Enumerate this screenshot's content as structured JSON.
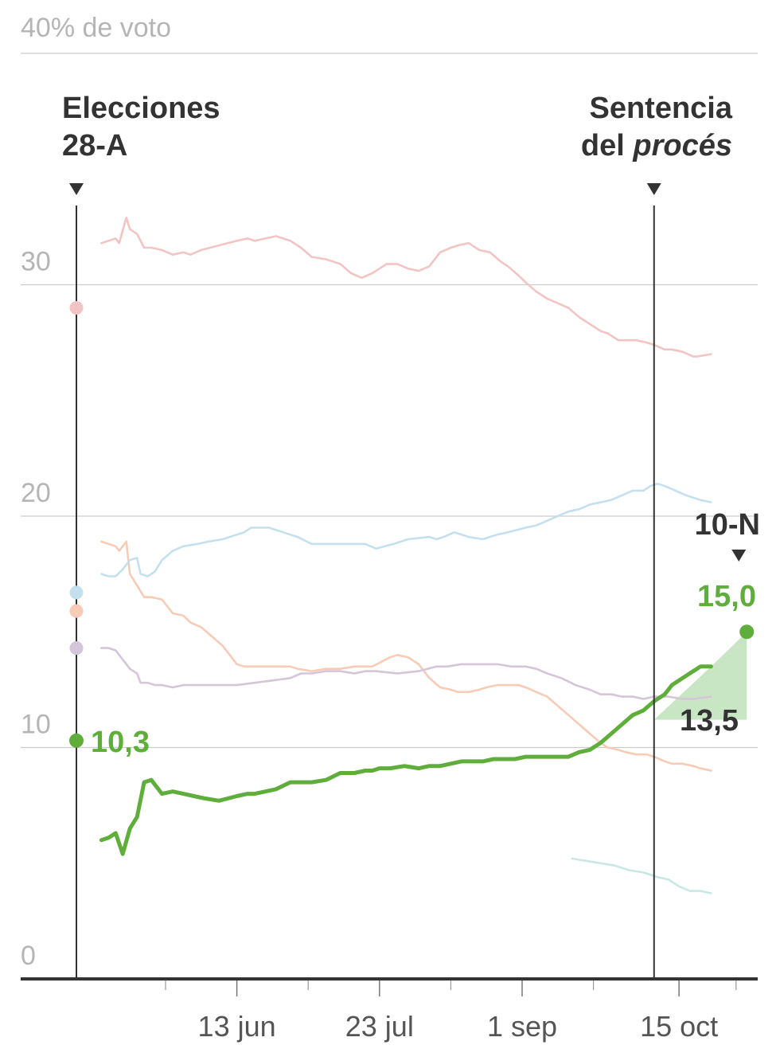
{
  "chart_data": {
    "type": "line",
    "title": "",
    "xlabel": "",
    "ylabel": "40% de voto",
    "ylim": [
      0,
      40
    ],
    "y_ticks": [
      "0",
      "10",
      "20",
      "30"
    ],
    "x_ticks": [
      "13 jun",
      "23 jul",
      "1 sep",
      "15 oct"
    ],
    "x_tick_days": [
      45,
      85,
      125,
      169
    ],
    "x_minor_tick_days": [
      25,
      65,
      105,
      145,
      185
    ],
    "grid": true,
    "colors": {
      "psoe": "#f2c4c4",
      "pp": "#c4e0ee",
      "cs": "#f7cbb6",
      "up": "#d5c5d8",
      "mp": "#c9e8e3",
      "vox": "#5fae3c",
      "vox_fill": "#b7ddb0",
      "event_line": "#333333",
      "axis": "#333333",
      "grid": "#cccccc"
    },
    "events": [
      {
        "name": "election",
        "day": 0,
        "label_lines": [
          "Elecciones",
          "28-A"
        ]
      },
      {
        "name": "sentence",
        "day": 162,
        "label_lines": [
          "Sentencia",
          "del procés"
        ],
        "label_italic_word": "procés"
      }
    ],
    "target": {
      "label": "10-N",
      "day": 188
    },
    "start_points": [
      {
        "series": "psoe",
        "day": 0,
        "value": 29.0
      },
      {
        "series": "pp",
        "day": 0,
        "value": 16.7
      },
      {
        "series": "cs",
        "day": 0,
        "value": 15.9
      },
      {
        "series": "up",
        "day": 0,
        "value": 14.3
      },
      {
        "series": "vox",
        "day": 0,
        "value": 10.3
      }
    ],
    "vox_labels": {
      "start": "10,3",
      "result": "15,0",
      "poll": "13,5",
      "result_value": 15.0,
      "poll_value": 13.5,
      "result_day": 188
    },
    "series": [
      {
        "key": "psoe",
        "x": [
          7,
          9,
          11,
          12,
          14,
          15,
          17,
          19,
          21,
          24,
          27,
          30,
          32,
          35,
          40,
          45,
          48,
          50,
          53,
          56,
          60,
          63,
          66,
          70,
          74,
          77,
          80,
          83,
          85,
          87,
          90,
          93,
          96,
          99,
          102,
          105,
          107,
          110,
          113,
          116,
          119,
          121,
          124,
          126,
          129,
          132,
          135,
          138,
          141,
          144,
          147,
          149,
          152,
          154,
          157,
          160,
          162,
          165,
          167,
          170,
          173,
          174,
          178
        ],
        "values": [
          31.8,
          31.9,
          32.0,
          31.8,
          32.9,
          32.4,
          32.2,
          31.6,
          31.6,
          31.5,
          31.3,
          31.4,
          31.3,
          31.5,
          31.7,
          31.9,
          32.0,
          31.9,
          32.0,
          32.1,
          31.9,
          31.6,
          31.2,
          31.1,
          30.9,
          30.5,
          30.3,
          30.5,
          30.7,
          30.9,
          30.9,
          30.7,
          30.6,
          30.8,
          31.4,
          31.6,
          31.7,
          31.8,
          31.5,
          31.4,
          31.0,
          30.8,
          30.4,
          30.1,
          29.7,
          29.4,
          29.2,
          29.0,
          28.6,
          28.3,
          28.0,
          27.9,
          27.6,
          27.6,
          27.6,
          27.5,
          27.4,
          27.2,
          27.2,
          27.1,
          26.9,
          26.9,
          27.0
        ]
      },
      {
        "key": "pp",
        "x": [
          7,
          9,
          11,
          13,
          15,
          17,
          18,
          20,
          22,
          24,
          27,
          30,
          34,
          37,
          41,
          45,
          47,
          49,
          54,
          58,
          62,
          66,
          70,
          74,
          78,
          81,
          84,
          89,
          93,
          99,
          101,
          103,
          106,
          110,
          114,
          118,
          121,
          126,
          129,
          132,
          135,
          138,
          141,
          144,
          147,
          150,
          153,
          156,
          159,
          161,
          163,
          165,
          168,
          171,
          175,
          178
        ],
        "values": [
          17.5,
          17.4,
          17.4,
          17.7,
          18.1,
          18.2,
          17.5,
          17.4,
          17.6,
          18.1,
          18.5,
          18.7,
          18.8,
          18.9,
          19.0,
          19.2,
          19.3,
          19.5,
          19.5,
          19.3,
          19.1,
          18.8,
          18.8,
          18.8,
          18.8,
          18.8,
          18.6,
          18.8,
          19.0,
          19.1,
          19.0,
          19.1,
          19.3,
          19.1,
          19.0,
          19.2,
          19.3,
          19.5,
          19.6,
          19.8,
          20.0,
          20.2,
          20.3,
          20.5,
          20.6,
          20.7,
          20.9,
          21.1,
          21.1,
          21.3,
          21.4,
          21.3,
          21.1,
          20.9,
          20.7,
          20.6
        ]
      },
      {
        "key": "cs",
        "x": [
          7,
          9,
          11,
          12,
          14,
          15,
          17,
          19,
          21,
          24,
          27,
          30,
          32,
          35,
          38,
          41,
          45,
          47,
          50,
          55,
          60,
          62,
          66,
          70,
          74,
          78,
          83,
          88,
          90,
          93,
          96,
          99,
          102,
          105,
          107,
          110,
          113,
          115,
          118,
          121,
          124,
          126,
          129,
          132,
          135,
          138,
          141,
          144,
          147,
          149,
          152,
          154,
          157,
          160,
          162,
          165,
          167,
          170,
          173,
          175,
          178
        ],
        "values": [
          18.9,
          18.8,
          18.7,
          18.5,
          18.9,
          17.5,
          17.0,
          16.5,
          16.5,
          16.4,
          15.8,
          15.7,
          15.4,
          15.2,
          14.8,
          14.4,
          13.6,
          13.5,
          13.5,
          13.5,
          13.5,
          13.4,
          13.3,
          13.4,
          13.4,
          13.5,
          13.5,
          13.9,
          14.0,
          13.9,
          13.6,
          13.0,
          12.6,
          12.5,
          12.4,
          12.4,
          12.5,
          12.6,
          12.7,
          12.7,
          12.7,
          12.6,
          12.4,
          12.2,
          11.8,
          11.4,
          11.0,
          10.6,
          10.2,
          10.0,
          9.9,
          9.8,
          9.7,
          9.7,
          9.6,
          9.4,
          9.3,
          9.3,
          9.2,
          9.1,
          9.0
        ]
      },
      {
        "key": "up",
        "x": [
          7,
          9,
          11,
          13,
          15,
          17,
          18,
          20,
          22,
          24,
          27,
          30,
          33,
          36,
          40,
          45,
          50,
          55,
          60,
          63,
          66,
          70,
          74,
          78,
          81,
          84,
          90,
          96,
          101,
          104,
          108,
          113,
          118,
          122,
          126,
          129,
          132,
          136,
          140,
          144,
          147,
          150,
          153,
          156,
          159,
          162,
          166,
          170,
          173,
          178
        ],
        "values": [
          14.3,
          14.3,
          14.2,
          13.8,
          13.4,
          13.2,
          12.8,
          12.8,
          12.7,
          12.7,
          12.6,
          12.7,
          12.7,
          12.7,
          12.7,
          12.7,
          12.8,
          12.9,
          13.0,
          13.2,
          13.2,
          13.3,
          13.3,
          13.2,
          13.3,
          13.3,
          13.2,
          13.3,
          13.5,
          13.5,
          13.6,
          13.6,
          13.6,
          13.5,
          13.5,
          13.4,
          13.2,
          13.0,
          12.7,
          12.5,
          12.3,
          12.3,
          12.2,
          12.2,
          12.1,
          12.2,
          12.2,
          12.1,
          12.1,
          12.2
        ]
      },
      {
        "key": "mp",
        "x": [
          139,
          143,
          147,
          151,
          155,
          159,
          163,
          166,
          169,
          172,
          175,
          178
        ],
        "values": [
          5.2,
          5.1,
          5.0,
          4.9,
          4.7,
          4.6,
          4.4,
          4.3,
          4.0,
          3.8,
          3.8,
          3.7
        ]
      },
      {
        "key": "vox",
        "x": [
          7,
          9,
          11,
          13,
          15,
          17,
          19,
          21,
          24,
          27,
          30,
          33,
          36,
          40,
          45,
          48,
          50,
          53,
          56,
          60,
          63,
          66,
          70,
          74,
          78,
          81,
          83,
          85,
          88,
          92,
          96,
          99,
          102,
          105,
          108,
          111,
          114,
          117,
          120,
          123,
          126,
          129,
          132,
          135,
          138,
          141,
          144,
          147,
          150,
          153,
          156,
          159,
          162,
          165,
          167,
          170,
          173,
          175,
          178
        ],
        "values": [
          6.0,
          6.1,
          6.3,
          5.4,
          6.5,
          7.0,
          8.5,
          8.6,
          8.0,
          8.1,
          8.0,
          7.9,
          7.8,
          7.7,
          7.9,
          8.0,
          8.0,
          8.1,
          8.2,
          8.5,
          8.5,
          8.5,
          8.6,
          8.9,
          8.9,
          9.0,
          9.0,
          9.1,
          9.1,
          9.2,
          9.1,
          9.2,
          9.2,
          9.3,
          9.4,
          9.4,
          9.4,
          9.5,
          9.5,
          9.5,
          9.6,
          9.6,
          9.6,
          9.6,
          9.6,
          9.8,
          9.9,
          10.2,
          10.6,
          11.0,
          11.4,
          11.6,
          12.0,
          12.3,
          12.7,
          13.0,
          13.3,
          13.5,
          13.5
        ]
      }
    ]
  }
}
